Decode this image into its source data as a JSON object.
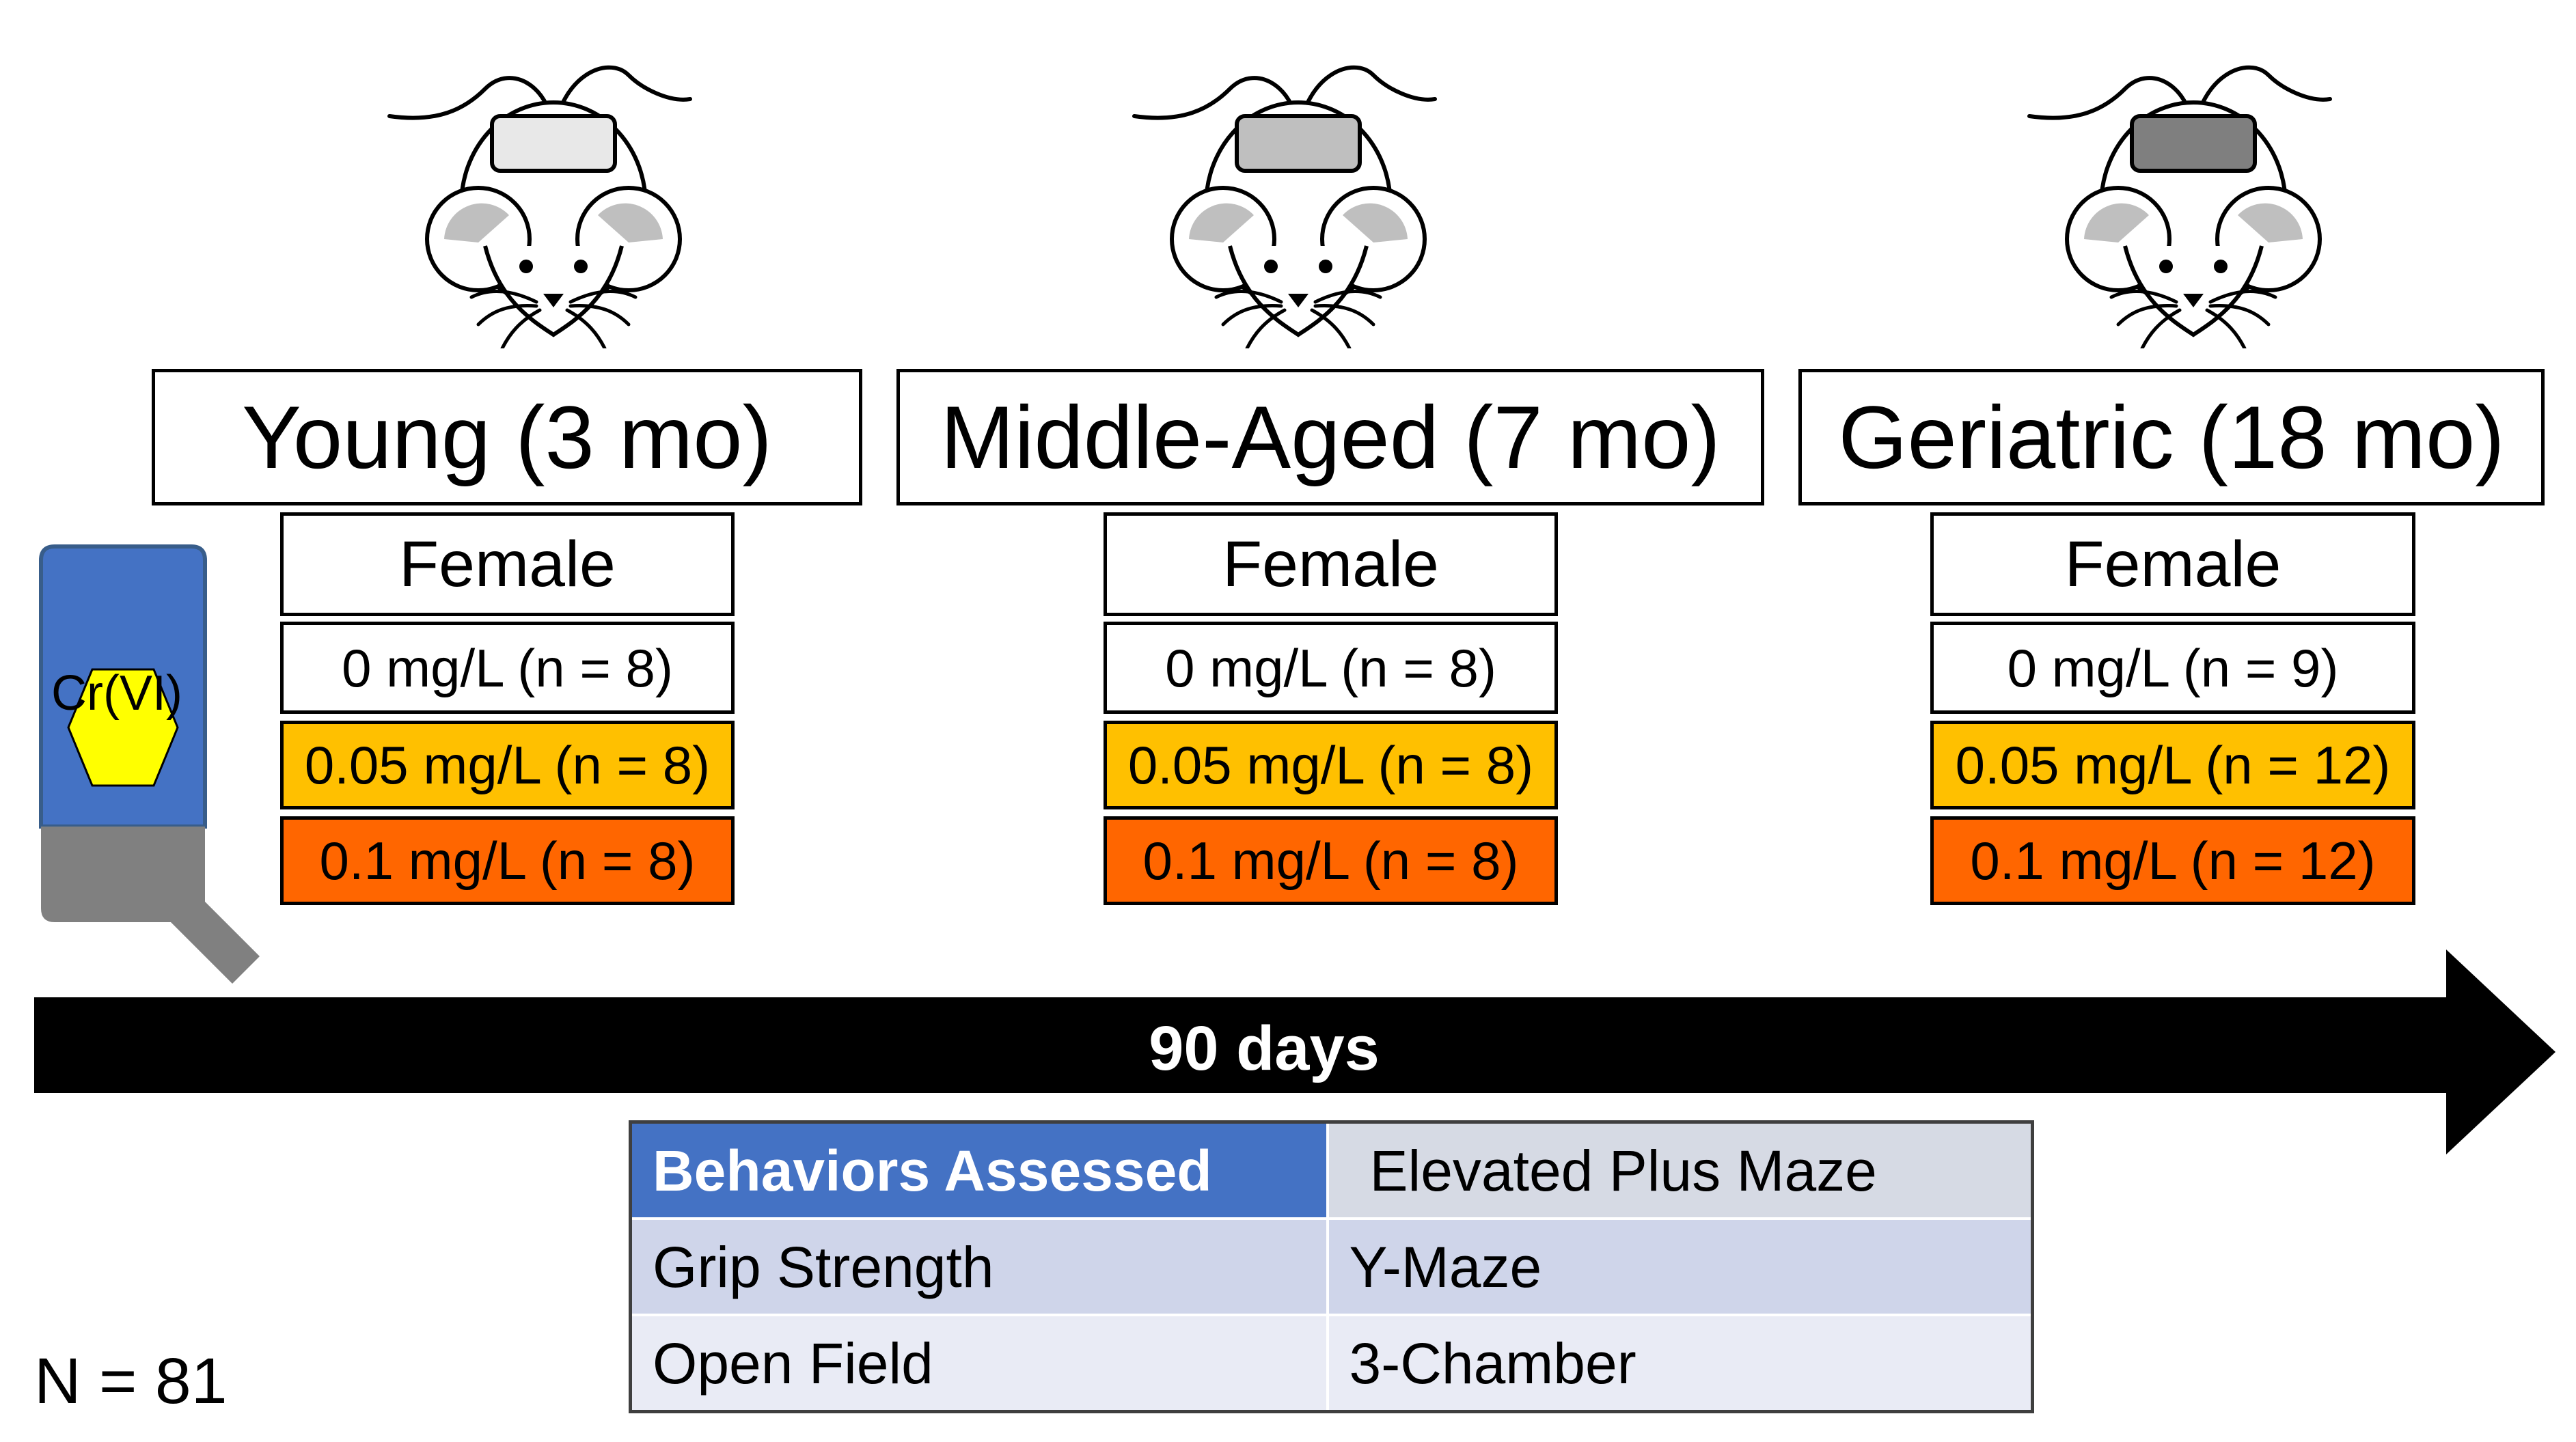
{
  "groups": [
    {
      "label": "Young (3 mo)",
      "sex": "Female",
      "doses": [
        "0 mg/L (n = 8)",
        "0.05 mg/L (n = 8)",
        "0.1 mg/L (n = 8)"
      ],
      "brain_color": "#e8e8e8"
    },
    {
      "label": "Middle-Aged (7 mo)",
      "sex": "Female",
      "doses": [
        "0 mg/L (n = 8)",
        "0.05 mg/L (n = 8)",
        "0.1 mg/L (n = 8)"
      ],
      "brain_color": "#bfbfbf"
    },
    {
      "label": "Geriatric (18 mo)",
      "sex": "Female",
      "doses": [
        "0 mg/L (n = 9)",
        "0.05 mg/L (n = 12)",
        "0.1 mg/L (n = 12)"
      ],
      "brain_color": "#7f7f7f"
    }
  ],
  "bottle": {
    "label": "Cr(VI)",
    "body_color": "#4472c4",
    "cap_color": "#808080",
    "label_color": "#ffff00"
  },
  "timeline": {
    "label": "90 days"
  },
  "behaviors": {
    "header": "Behaviors Assessed",
    "rows": [
      [
        "",
        "Elevated Plus Maze"
      ],
      [
        "Grip Strength",
        "Y-Maze"
      ],
      [
        "Open Field",
        "3-Chamber"
      ]
    ]
  },
  "total": "N = 81",
  "colors": {
    "white": "#ffffff",
    "yellow": "#ffc000",
    "orange": "#ff6600"
  }
}
